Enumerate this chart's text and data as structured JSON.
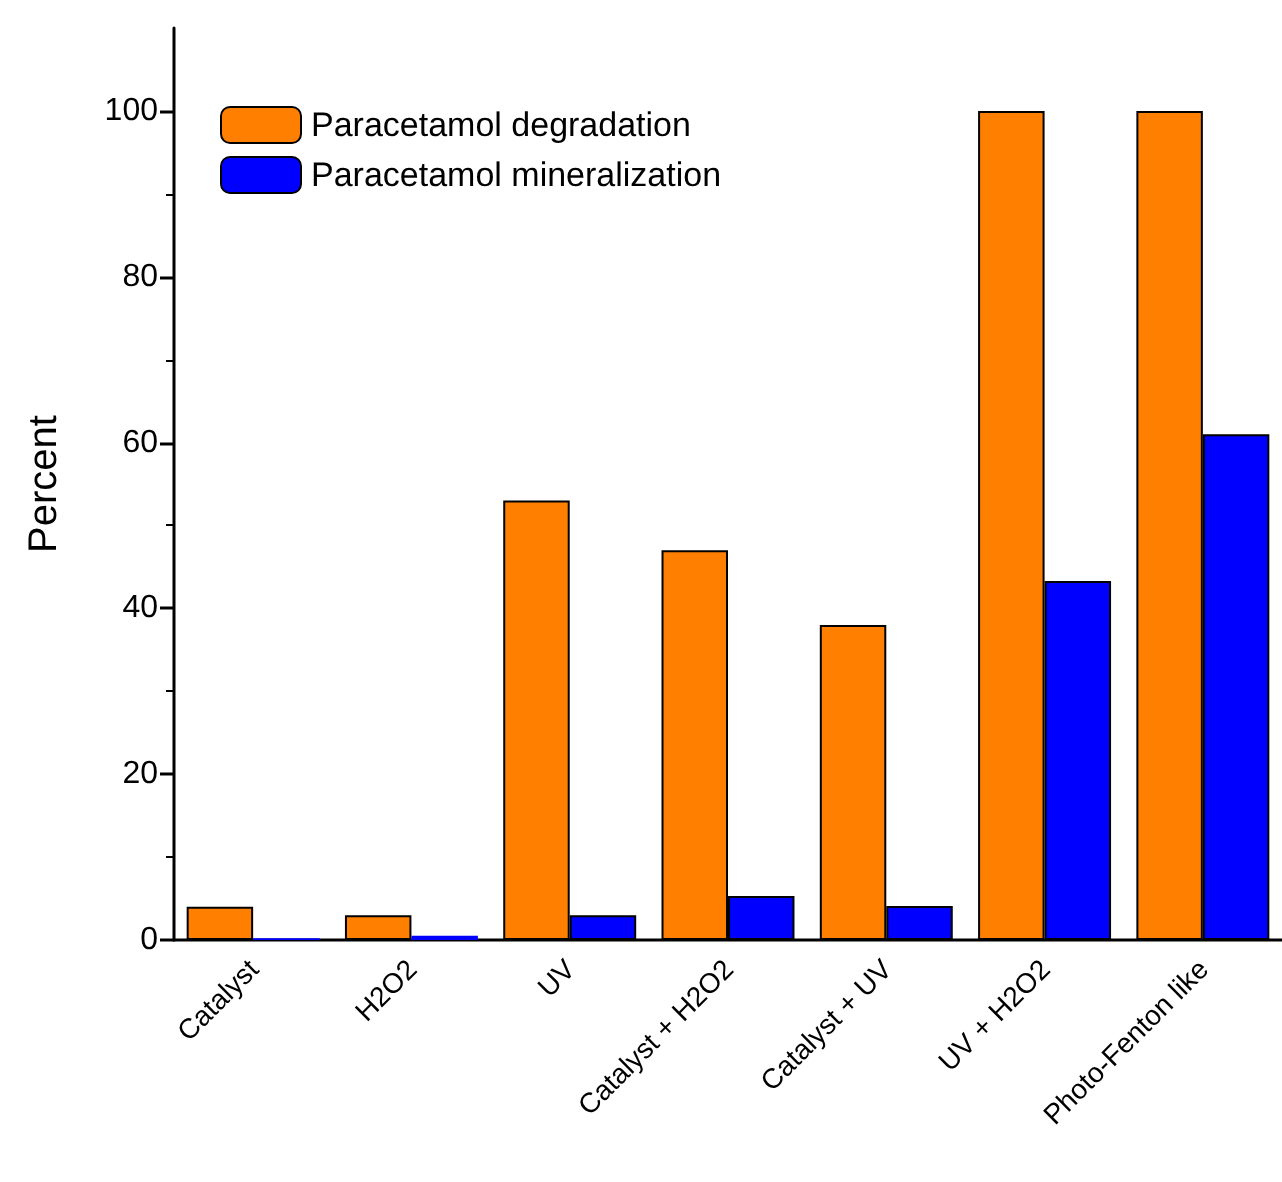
{
  "chart_data": {
    "type": "bar",
    "ylabel": "Percent",
    "categories": [
      "Catalyst",
      "H2O2",
      "UV",
      "Catalyst + H2O2",
      "Catalyst + UV",
      "UV + H2O2",
      "Photo-Fenton like"
    ],
    "series": [
      {
        "name": "Paracetamol degradation",
        "color": "#ff8000",
        "values": [
          4,
          3,
          53,
          47,
          38,
          100,
          100
        ]
      },
      {
        "name": "Paracetamol mineralization",
        "color": "#0000ff",
        "values": [
          0.2,
          0.5,
          3,
          5.3,
          4.1,
          43.3,
          61
        ]
      }
    ],
    "ylim": [
      0,
      110
    ],
    "yticks": [
      0,
      20,
      40,
      60,
      80,
      100
    ],
    "grid": false,
    "legend": "top left"
  }
}
